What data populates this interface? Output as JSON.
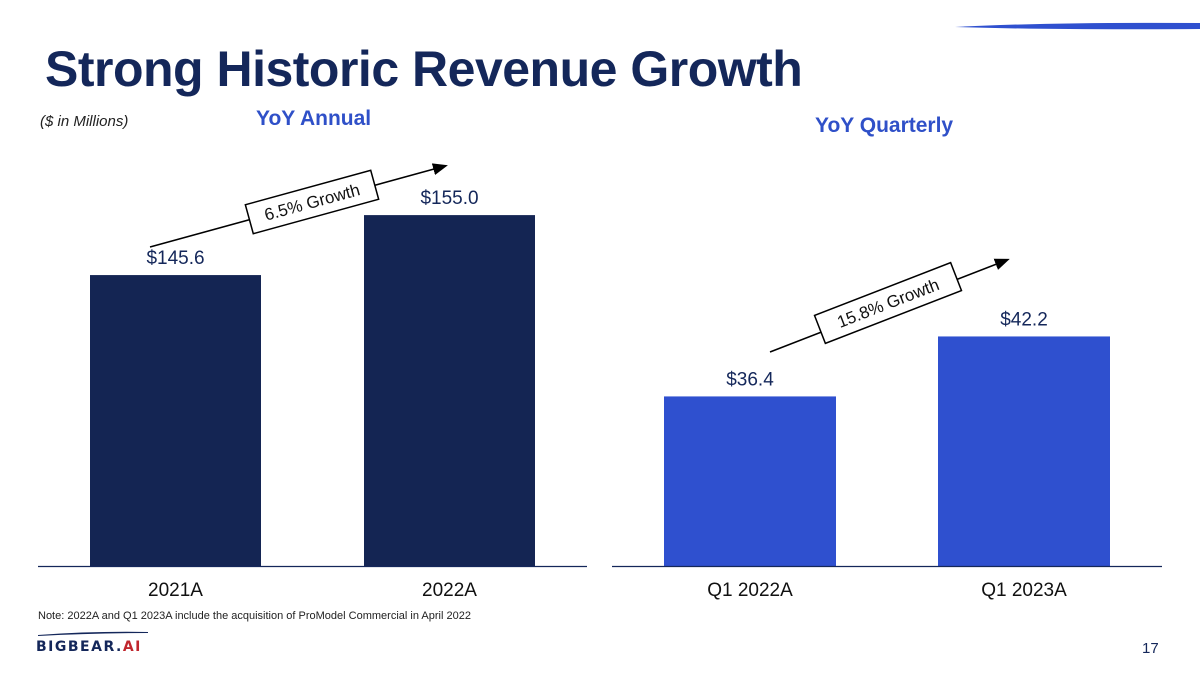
{
  "slide": {
    "title": "Strong Historic Revenue Growth",
    "units": "($ in Millions)",
    "note": "Note: 2022A and Q1 2023A include the acquisition of ProModel Commercial in April 2022",
    "logo": {
      "main": "BIGBEAR.",
      "accent": "AI"
    },
    "page_number": "17"
  },
  "colors": {
    "title": "#14275a",
    "annual_bar": "#142553",
    "quarterly_bar": "#2f50cf",
    "subtitle": "#2f50c8",
    "logo_accent": "#c0262d"
  },
  "chart_data": [
    {
      "type": "bar",
      "title": "YoY Annual",
      "categories": [
        "2021A",
        "2022A"
      ],
      "values": [
        145.6,
        155.0
      ],
      "data_labels": [
        "$145.6",
        "$155.0"
      ],
      "xlabel": "",
      "ylabel": "($ in Millions)",
      "ylim": [
        100,
        160
      ],
      "grid": false,
      "annotation": "6.5% Growth"
    },
    {
      "type": "bar",
      "title": "YoY Quarterly",
      "categories": [
        "Q1 2022A",
        "Q1 2023A"
      ],
      "values": [
        36.4,
        42.2
      ],
      "data_labels": [
        "$36.4",
        "$42.2"
      ],
      "xlabel": "",
      "ylabel": "($ in Millions)",
      "ylim": [
        20,
        45
      ],
      "grid": false,
      "annotation": "15.8% Growth"
    }
  ]
}
